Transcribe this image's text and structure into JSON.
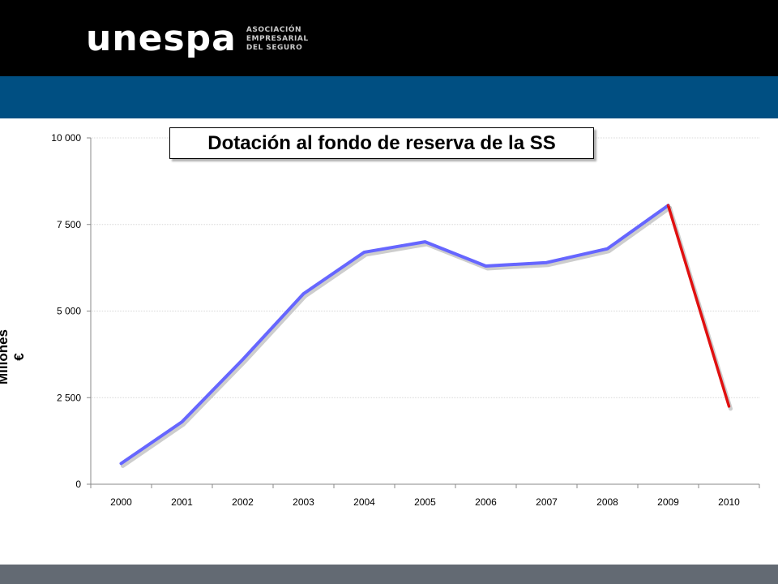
{
  "branding": {
    "logo_text": "unespa",
    "logo_subtitle": [
      "ASOCIACIÓN",
      "EMPRESARIAL",
      "DEL SEGURO"
    ]
  },
  "colors": {
    "top_bar": "#000000",
    "blue_bar": "#004f82",
    "bottom_bar": "#636a73",
    "series_main": "#6666ff",
    "series_drop": "#e01010"
  },
  "chart_data": {
    "type": "line",
    "title": "Dotación al fondo de reserva de la SS",
    "xlabel": "",
    "ylabel": "Millones €",
    "categories": [
      "2000",
      "2001",
      "2002",
      "2003",
      "2004",
      "2005",
      "2006",
      "2007",
      "2008",
      "2009",
      "2010"
    ],
    "values": [
      600,
      1800,
      3600,
      5500,
      6700,
      7000,
      6300,
      6400,
      6800,
      8050,
      2250
    ],
    "highlight_segment": {
      "from": "2009",
      "to": "2010",
      "color": "#e01010"
    },
    "ylim": [
      0,
      10000
    ],
    "yticks": [
      0,
      2500,
      5000,
      7500,
      10000
    ],
    "ytick_labels": [
      "0",
      "2 500",
      "5 000",
      "7 500",
      "10 000"
    ],
    "grid": true,
    "legend": "none"
  }
}
